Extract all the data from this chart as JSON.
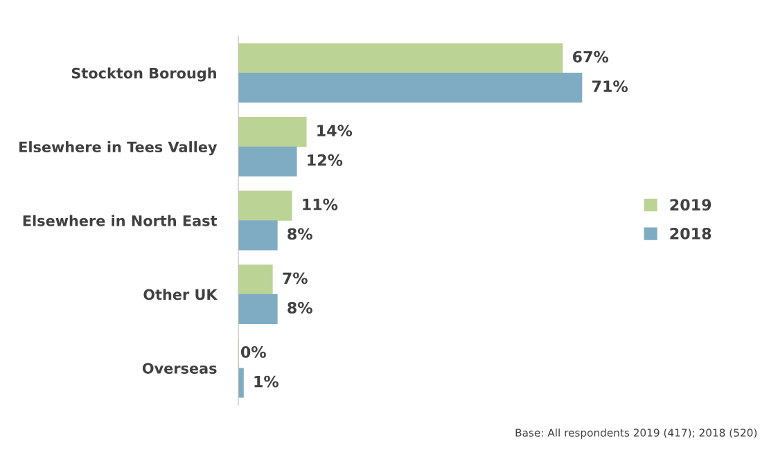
{
  "chart_data": {
    "type": "bar",
    "orientation": "horizontal",
    "categories": [
      "Stockton Borough",
      "Elsewhere in Tees Valley",
      "Elsewhere in North East",
      "Other UK",
      "Overseas"
    ],
    "series": [
      {
        "name": "2019",
        "color": "#bcd396",
        "values": [
          67,
          14,
          11,
          7,
          0
        ],
        "value_labels": [
          "67%",
          "14%",
          "11%",
          "7%",
          "0%"
        ]
      },
      {
        "name": "2018",
        "color": "#7facc2",
        "values": [
          71,
          12,
          8,
          8,
          1
        ],
        "value_labels": [
          "71%",
          "12%",
          "8%",
          "8%",
          "1%"
        ]
      }
    ],
    "legend": "right",
    "grid": false,
    "annotations": [
      "Base: All respondents 2019 (417); 2018 (520)"
    ]
  }
}
